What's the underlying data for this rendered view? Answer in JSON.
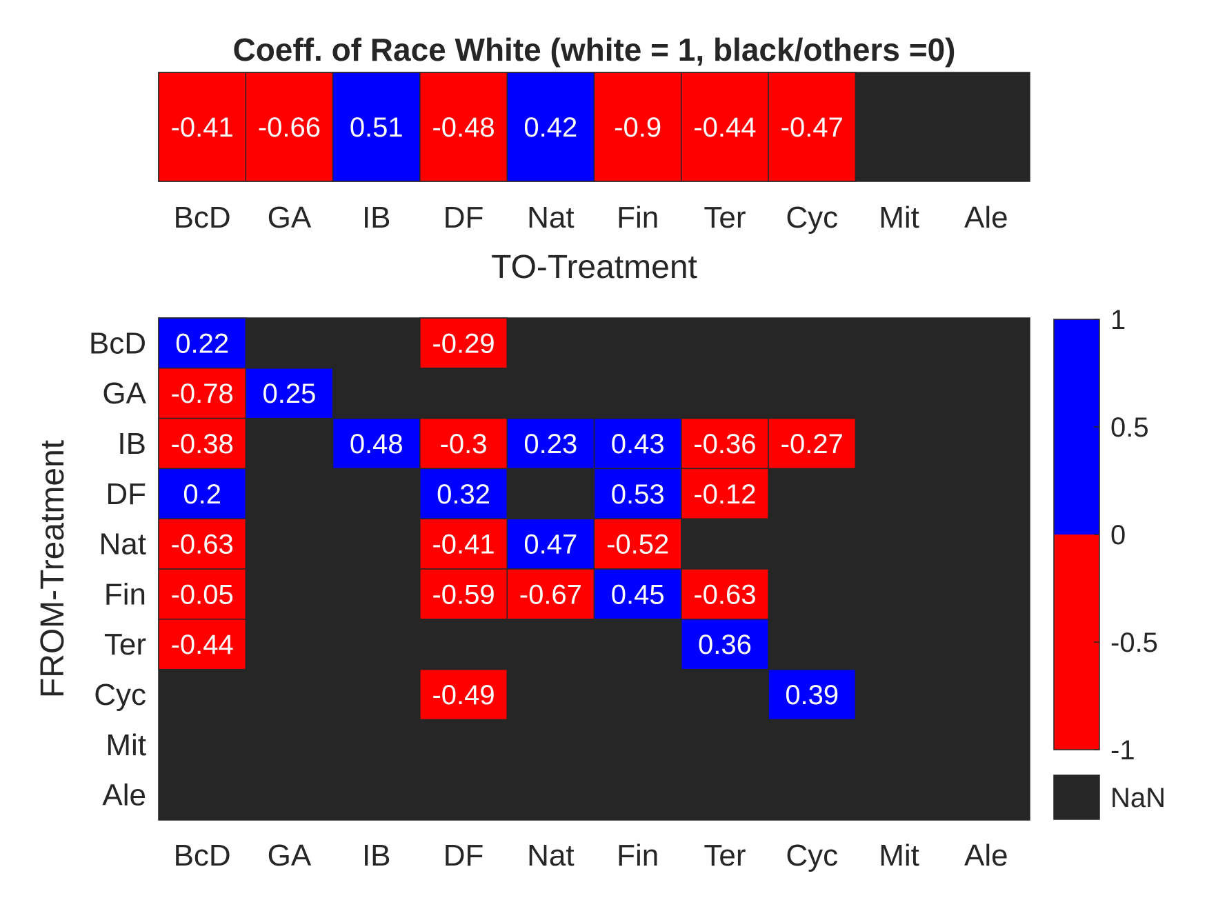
{
  "chart_data": [
    {
      "type": "heatmap",
      "title": "Coeff. of Race White (white = 1, black/others =0)",
      "xlabel": "TO-Treatment",
      "ylabel": "",
      "x_categories": [
        "BcD",
        "GA",
        "IB",
        "DF",
        "Nat",
        "Fin",
        "Ter",
        "Cyc",
        "Mit",
        "Ale"
      ],
      "values": [
        [
          -0.41,
          -0.66,
          0.51,
          -0.48,
          0.42,
          -0.9,
          -0.44,
          -0.47,
          null,
          null
        ]
      ],
      "color_scale": "sign"
    },
    {
      "type": "heatmap",
      "title": "",
      "xlabel": "",
      "ylabel": "FROM-Treatment",
      "x_categories": [
        "BcD",
        "GA",
        "IB",
        "DF",
        "Nat",
        "Fin",
        "Ter",
        "Cyc",
        "Mit",
        "Ale"
      ],
      "y_categories": [
        "BcD",
        "GA",
        "IB",
        "DF",
        "Nat",
        "Fin",
        "Ter",
        "Cyc",
        "Mit",
        "Ale"
      ],
      "values": [
        [
          0.22,
          null,
          null,
          -0.29,
          null,
          null,
          null,
          null,
          null,
          null
        ],
        [
          -0.78,
          0.25,
          null,
          null,
          null,
          null,
          null,
          null,
          null,
          null
        ],
        [
          -0.38,
          null,
          0.48,
          -0.3,
          0.23,
          0.43,
          -0.36,
          -0.27,
          null,
          null
        ],
        [
          0.2,
          null,
          null,
          0.32,
          null,
          0.53,
          -0.12,
          null,
          null,
          null
        ],
        [
          -0.63,
          null,
          null,
          -0.41,
          0.47,
          -0.52,
          null,
          null,
          null,
          null
        ],
        [
          -0.05,
          null,
          null,
          -0.59,
          -0.67,
          0.45,
          -0.63,
          null,
          null,
          null
        ],
        [
          -0.44,
          null,
          null,
          null,
          null,
          null,
          0.36,
          null,
          null,
          null
        ],
        [
          null,
          null,
          null,
          -0.49,
          null,
          null,
          null,
          0.39,
          null,
          null
        ],
        [
          null,
          null,
          null,
          null,
          null,
          null,
          null,
          null,
          null,
          null
        ],
        [
          null,
          null,
          null,
          null,
          null,
          null,
          null,
          null,
          null,
          null
        ]
      ],
      "colorbar": {
        "range": [
          -1,
          1
        ],
        "ticks": [
          1,
          0.5,
          0,
          -0.5,
          -1
        ],
        "tick_labels": [
          "1",
          "0.5",
          "0",
          "-0.5",
          "-1"
        ],
        "nan_label": "NaN"
      }
    }
  ],
  "colors": {
    "positive": "#0000ff",
    "negative": "#ff0000",
    "nan": "#262626",
    "text_on_cell": "#ffffff",
    "axis_text": "#262626"
  }
}
